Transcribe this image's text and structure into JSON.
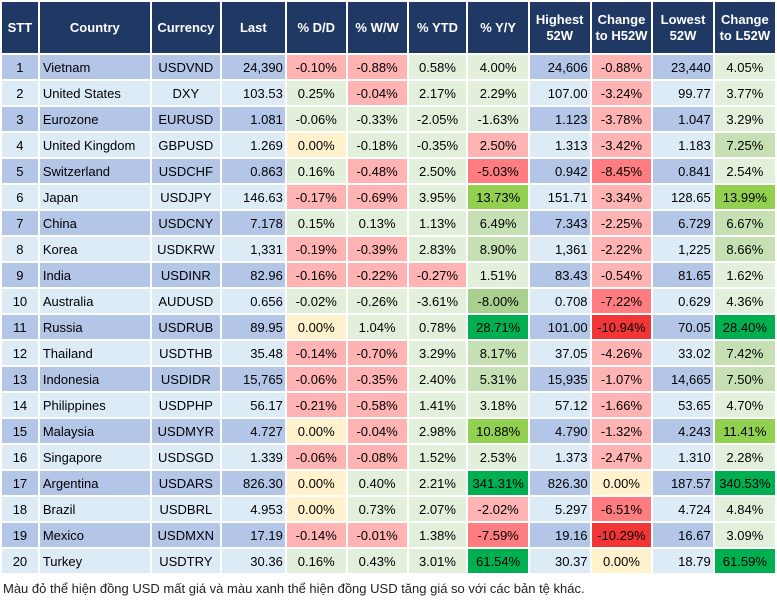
{
  "headers": [
    "STT",
    "Country",
    "Currency",
    "Last",
    "% D/D",
    "% W/W",
    "% YTD",
    "% Y/Y",
    "Highest 52W",
    "Change to H52W",
    "Lowest 52W",
    "Change to L52W"
  ],
  "colors": {
    "header": "#203864",
    "row_odd": "#b4c6e7",
    "row_even": "#ddebf7",
    "light_green": "#e2efda",
    "light_red": "#ffb3b3",
    "neutral": "#fff2cc",
    "green": "#c6e0b4",
    "lime": "#92d050",
    "strong_green": "#00b050",
    "red": "#ff7c80",
    "strong_red": "#f23535"
  },
  "rows": [
    {
      "stt": "1",
      "country": "Vietnam",
      "currency": "USDVND",
      "last": "24,390",
      "dd": "-0.10%",
      "ww": "-0.88%",
      "ytd": "0.58%",
      "yy": "4.00%",
      "high": "24,606",
      "chg_high": "-0.88%",
      "low": "23,440",
      "chg_low": "4.05%",
      "tone": [
        "r",
        "r",
        "g",
        "g",
        "r",
        "g"
      ]
    },
    {
      "stt": "2",
      "country": "United States",
      "currency": "DXY",
      "last": "103.53",
      "dd": "0.25%",
      "ww": "-0.04%",
      "ytd": "2.17%",
      "yy": "2.29%",
      "high": "107.00",
      "chg_high": "-3.24%",
      "low": "99.77",
      "chg_low": "3.77%",
      "tone": [
        "g",
        "r",
        "g",
        "g",
        "r",
        "g"
      ]
    },
    {
      "stt": "3",
      "country": "Eurozone",
      "currency": "EURUSD",
      "last": "1.081",
      "dd": "-0.06%",
      "ww": "-0.33%",
      "ytd": "-2.05%",
      "yy": "-1.63%",
      "high": "1.123",
      "chg_high": "-3.78%",
      "low": "1.047",
      "chg_low": "3.29%",
      "tone": [
        "g",
        "g",
        "g",
        "g",
        "r",
        "g"
      ]
    },
    {
      "stt": "4",
      "country": "United Kingdom",
      "currency": "GBPUSD",
      "last": "1.269",
      "dd": "0.00%",
      "ww": "-0.18%",
      "ytd": "-0.35%",
      "yy": "2.50%",
      "high": "1.313",
      "chg_high": "-3.42%",
      "low": "1.183",
      "chg_low": "7.25%",
      "tone": [
        "y",
        "g",
        "g",
        "r",
        "r",
        "G"
      ]
    },
    {
      "stt": "5",
      "country": "Switzerland",
      "currency": "USDCHF",
      "last": "0.863",
      "dd": "0.16%",
      "ww": "-0.48%",
      "ytd": "2.50%",
      "yy": "-5.03%",
      "high": "0.942",
      "chg_high": "-8.45%",
      "low": "0.841",
      "chg_low": "2.54%",
      "tone": [
        "g",
        "r",
        "g",
        "R",
        "R",
        "g"
      ]
    },
    {
      "stt": "6",
      "country": "Japan",
      "currency": "USDJPY",
      "last": "146.63",
      "dd": "-0.17%",
      "ww": "-0.69%",
      "ytd": "3.95%",
      "yy": "13.73%",
      "high": "151.71",
      "chg_high": "-3.34%",
      "low": "128.65",
      "chg_low": "13.99%",
      "tone": [
        "r",
        "r",
        "g",
        "L",
        "r",
        "L"
      ]
    },
    {
      "stt": "7",
      "country": "China",
      "currency": "USDCNY",
      "last": "7.178",
      "dd": "0.15%",
      "ww": "0.13%",
      "ytd": "1.13%",
      "yy": "6.49%",
      "high": "7.343",
      "chg_high": "-2.25%",
      "low": "6.729",
      "chg_low": "6.67%",
      "tone": [
        "g",
        "g",
        "g",
        "G",
        "r",
        "G"
      ]
    },
    {
      "stt": "8",
      "country": "Korea",
      "currency": "USDKRW",
      "last": "1,331",
      "dd": "-0.19%",
      "ww": "-0.39%",
      "ytd": "2.83%",
      "yy": "8.90%",
      "high": "1,361",
      "chg_high": "-2.22%",
      "low": "1,225",
      "chg_low": "8.66%",
      "tone": [
        "r",
        "r",
        "g",
        "G",
        "r",
        "G"
      ]
    },
    {
      "stt": "9",
      "country": "India",
      "currency": "USDINR",
      "last": "82.96",
      "dd": "-0.16%",
      "ww": "-0.22%",
      "ytd": "-0.27%",
      "yy": "1.51%",
      "high": "83.43",
      "chg_high": "-0.54%",
      "low": "81.65",
      "chg_low": "1.62%",
      "tone": [
        "r",
        "r",
        "r",
        "g",
        "r",
        "g"
      ]
    },
    {
      "stt": "10",
      "country": "Australia",
      "currency": "AUDUSD",
      "last": "0.656",
      "dd": "-0.02%",
      "ww": "-0.26%",
      "ytd": "-3.61%",
      "yy": "-8.00%",
      "high": "0.708",
      "chg_high": "-7.22%",
      "low": "0.629",
      "chg_low": "4.36%",
      "tone": [
        "g",
        "g",
        "g",
        "G2",
        "R",
        "g"
      ]
    },
    {
      "stt": "11",
      "country": "Russia",
      "currency": "USDRUB",
      "last": "89.95",
      "dd": "0.00%",
      "ww": "1.04%",
      "ytd": "0.78%",
      "yy": "28.71%",
      "high": "101.00",
      "chg_high": "-10.94%",
      "low": "70.05",
      "chg_low": "28.40%",
      "tone": [
        "y",
        "g",
        "g",
        "B",
        "RR",
        "B"
      ]
    },
    {
      "stt": "12",
      "country": "Thailand",
      "currency": "USDTHB",
      "last": "35.48",
      "dd": "-0.14%",
      "ww": "-0.70%",
      "ytd": "3.29%",
      "yy": "8.17%",
      "high": "37.05",
      "chg_high": "-4.26%",
      "low": "33.02",
      "chg_low": "7.42%",
      "tone": [
        "r",
        "r",
        "g",
        "G",
        "r",
        "G"
      ]
    },
    {
      "stt": "13",
      "country": "Indonesia",
      "currency": "USDIDR",
      "last": "15,765",
      "dd": "-0.06%",
      "ww": "-0.35%",
      "ytd": "2.40%",
      "yy": "5.31%",
      "high": "15,935",
      "chg_high": "-1.07%",
      "low": "14,665",
      "chg_low": "7.50%",
      "tone": [
        "r",
        "r",
        "g",
        "G",
        "r",
        "G"
      ]
    },
    {
      "stt": "14",
      "country": "Philippines",
      "currency": "USDPHP",
      "last": "56.17",
      "dd": "-0.21%",
      "ww": "-0.58%",
      "ytd": "1.41%",
      "yy": "3.18%",
      "high": "57.12",
      "chg_high": "-1.66%",
      "low": "53.65",
      "chg_low": "4.70%",
      "tone": [
        "r",
        "r",
        "g",
        "g",
        "r",
        "g"
      ]
    },
    {
      "stt": "15",
      "country": "Malaysia",
      "currency": "USDMYR",
      "last": "4.727",
      "dd": "0.00%",
      "ww": "-0.04%",
      "ytd": "2.98%",
      "yy": "10.88%",
      "high": "4.790",
      "chg_high": "-1.32%",
      "low": "4.243",
      "chg_low": "11.41%",
      "tone": [
        "y",
        "r",
        "g",
        "L",
        "r",
        "L"
      ]
    },
    {
      "stt": "16",
      "country": "Singapore",
      "currency": "USDSGD",
      "last": "1.339",
      "dd": "-0.06%",
      "ww": "-0.08%",
      "ytd": "1.52%",
      "yy": "2.53%",
      "high": "1.373",
      "chg_high": "-2.47%",
      "low": "1.310",
      "chg_low": "2.28%",
      "tone": [
        "r",
        "r",
        "g",
        "g",
        "r",
        "g"
      ]
    },
    {
      "stt": "17",
      "country": "Argentina",
      "currency": "USDARS",
      "last": "826.30",
      "dd": "0.00%",
      "ww": "0.40%",
      "ytd": "2.21%",
      "yy": "341.31%",
      "high": "826.30",
      "chg_high": "0.00%",
      "low": "187.57",
      "chg_low": "340.53%",
      "tone": [
        "y",
        "g",
        "g",
        "B",
        "y",
        "B"
      ]
    },
    {
      "stt": "18",
      "country": "Brazil",
      "currency": "USDBRL",
      "last": "4.953",
      "dd": "0.00%",
      "ww": "0.73%",
      "ytd": "2.07%",
      "yy": "-2.02%",
      "high": "5.297",
      "chg_high": "-6.51%",
      "low": "4.724",
      "chg_low": "4.84%",
      "tone": [
        "y",
        "g",
        "g",
        "r",
        "R",
        "g"
      ]
    },
    {
      "stt": "19",
      "country": "Mexico",
      "currency": "USDMXN",
      "last": "17.19",
      "dd": "-0.14%",
      "ww": "-0.01%",
      "ytd": "1.38%",
      "yy": "-7.59%",
      "high": "19.16",
      "chg_high": "-10.29%",
      "low": "16.67",
      "chg_low": "3.09%",
      "tone": [
        "r",
        "r",
        "g",
        "R",
        "RR",
        "g"
      ]
    },
    {
      "stt": "20",
      "country": "Turkey",
      "currency": "USDTRY",
      "last": "30.36",
      "dd": "0.16%",
      "ww": "0.43%",
      "ytd": "3.01%",
      "yy": "61.54%",
      "high": "30.37",
      "chg_high": "0.00%",
      "low": "18.79",
      "chg_low": "61.59%",
      "tone": [
        "g",
        "g",
        "g",
        "B",
        "y",
        "B"
      ]
    }
  ],
  "footer": "Màu đỏ thể hiện đồng USD mất giá và màu xanh thể hiện đồng USD tăng giá so với các bản tệ khác."
}
